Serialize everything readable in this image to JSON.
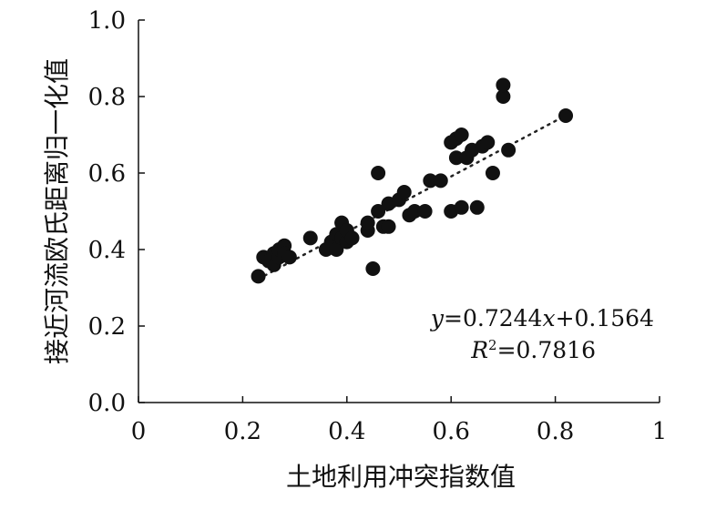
{
  "chart_data": {
    "type": "scatter",
    "xlabel": "土地利用冲突指数值",
    "ylabel": "接近河流欧氏距离归一化值",
    "xlim": [
      0,
      1
    ],
    "ylim": [
      0,
      1
    ],
    "x_ticks": [
      "0",
      "0.2",
      "0.4",
      "0.6",
      "0.8",
      "1"
    ],
    "y_ticks": [
      "0.0",
      "0.2",
      "0.4",
      "0.6",
      "0.8",
      "1.0"
    ],
    "grid": false,
    "points": [
      [
        0.23,
        0.33
      ],
      [
        0.24,
        0.38
      ],
      [
        0.25,
        0.37
      ],
      [
        0.26,
        0.36
      ],
      [
        0.26,
        0.39
      ],
      [
        0.27,
        0.38
      ],
      [
        0.27,
        0.4
      ],
      [
        0.28,
        0.41
      ],
      [
        0.28,
        0.39
      ],
      [
        0.29,
        0.38
      ],
      [
        0.33,
        0.43
      ],
      [
        0.36,
        0.4
      ],
      [
        0.37,
        0.42
      ],
      [
        0.38,
        0.4
      ],
      [
        0.38,
        0.44
      ],
      [
        0.39,
        0.47
      ],
      [
        0.39,
        0.43
      ],
      [
        0.4,
        0.42
      ],
      [
        0.4,
        0.45
      ],
      [
        0.41,
        0.43
      ],
      [
        0.44,
        0.45
      ],
      [
        0.44,
        0.47
      ],
      [
        0.45,
        0.35
      ],
      [
        0.46,
        0.6
      ],
      [
        0.46,
        0.5
      ],
      [
        0.47,
        0.46
      ],
      [
        0.48,
        0.52
      ],
      [
        0.48,
        0.46
      ],
      [
        0.5,
        0.53
      ],
      [
        0.51,
        0.55
      ],
      [
        0.52,
        0.49
      ],
      [
        0.53,
        0.5
      ],
      [
        0.55,
        0.5
      ],
      [
        0.56,
        0.58
      ],
      [
        0.58,
        0.58
      ],
      [
        0.6,
        0.68
      ],
      [
        0.6,
        0.5
      ],
      [
        0.61,
        0.69
      ],
      [
        0.61,
        0.64
      ],
      [
        0.62,
        0.7
      ],
      [
        0.62,
        0.51
      ],
      [
        0.63,
        0.64
      ],
      [
        0.64,
        0.66
      ],
      [
        0.65,
        0.51
      ],
      [
        0.66,
        0.67
      ],
      [
        0.67,
        0.68
      ],
      [
        0.68,
        0.6
      ],
      [
        0.7,
        0.8
      ],
      [
        0.7,
        0.83
      ],
      [
        0.71,
        0.66
      ],
      [
        0.82,
        0.75
      ]
    ],
    "trendline": {
      "slope": 0.7244,
      "intercept": 0.1564,
      "x_range": [
        0.23,
        0.82
      ],
      "style": "dotted"
    },
    "equation": {
      "y_var": "y",
      "y_rhs": "=0.7244",
      "x_var": "x",
      "tail": "+0.1564",
      "r_var": "R",
      "r_sup": "2",
      "r_rhs": "=0.7816"
    },
    "colors": {
      "points": "#111111",
      "axis": "#111111",
      "trend": "#222222"
    }
  }
}
